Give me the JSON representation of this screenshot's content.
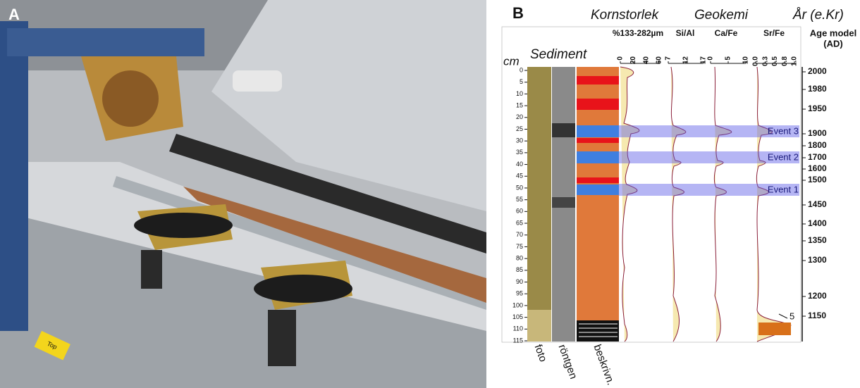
{
  "panel_a": {
    "label": "A",
    "photo_text": "Top"
  },
  "panel_b": {
    "label": "B",
    "cm_label": "cm",
    "sediment_label": "Sediment",
    "group_titles": [
      "Kornstorlek",
      "Geokemi",
      "År (e.Kr)"
    ],
    "columns": [
      {
        "title": "%133-282µm",
        "ticks": [
          "0",
          "20",
          "40",
          "60"
        ]
      },
      {
        "title": "Si/Al",
        "ticks": [
          "7",
          "12",
          "17"
        ]
      },
      {
        "title": "Ca/Fe",
        "ticks": [
          "0",
          "5",
          "10"
        ]
      },
      {
        "title": "Sr/Fe",
        "ticks": [
          "0.0",
          "0.3",
          "0.5",
          "0.8",
          "1.0"
        ]
      }
    ],
    "age_title": [
      "Age model",
      "(AD)"
    ],
    "depth_ticks": [
      0,
      5,
      10,
      15,
      20,
      25,
      30,
      35,
      40,
      45,
      50,
      55,
      60,
      65,
      70,
      75,
      80,
      85,
      90,
      95,
      100,
      105,
      110,
      115
    ],
    "ages": [
      "2000",
      "1980",
      "1950",
      "1900",
      "1800",
      "1700",
      "1600",
      "1500",
      "1450",
      "1400",
      "1350",
      "1300",
      "1200",
      "1150"
    ],
    "events": [
      "Event 3",
      "Event 2",
      "Event 1"
    ],
    "annotation": "5",
    "bottom_labels": [
      "foto",
      "röntgen",
      "beskrivn."
    ]
  }
}
